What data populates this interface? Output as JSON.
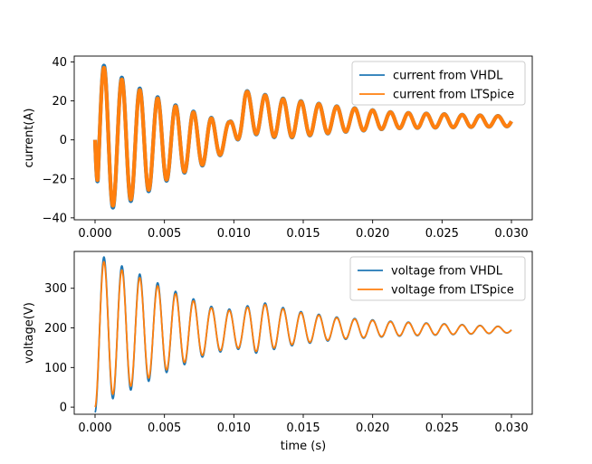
{
  "colors": {
    "vhdl": "#1f77b4",
    "ltspice": "#ff7f0e",
    "axis": "#000000",
    "background": "#ffffff"
  },
  "chart_data": [
    {
      "type": "line",
      "title": "",
      "xlabel": "",
      "ylabel": "current(A)",
      "xlim": [
        -0.0015,
        0.0315
      ],
      "ylim": [
        -41,
        43
      ],
      "xticks": [
        0.0,
        0.005,
        0.01,
        0.015,
        0.02,
        0.025,
        0.03
      ],
      "xtick_labels": [
        "0.000",
        "0.005",
        "0.010",
        "0.015",
        "0.020",
        "0.025",
        "0.030"
      ],
      "yticks": [
        -40,
        -20,
        0,
        20,
        40
      ],
      "ytick_labels": [
        "−40",
        "−20",
        "0",
        "20",
        "40"
      ],
      "grid": false,
      "legend_position": "top-right",
      "legend": [
        "current from VHDL",
        "current from LTSpice"
      ],
      "waveform": {
        "x_range": [
          0.0,
          0.03
        ],
        "oscillation_frequency_hz": 775,
        "ripple_band": 2.0,
        "envelope_points": [
          {
            "x": 0.0,
            "peak": 40,
            "trough": -37
          },
          {
            "x": 0.0028,
            "peak": 27,
            "trough": -30
          },
          {
            "x": 0.0055,
            "peak": 18,
            "trough": -19
          },
          {
            "x": 0.0084,
            "peak": 11,
            "trough": -11
          },
          {
            "x": 0.0097,
            "peak": 9,
            "trough": -4
          },
          {
            "x": 0.0108,
            "peak": 25,
            "trough": 4
          },
          {
            "x": 0.0135,
            "peak": 21,
            "trough": 1
          },
          {
            "x": 0.0175,
            "peak": 17,
            "trough": 4
          },
          {
            "x": 0.0215,
            "peak": 14,
            "trough": 6
          },
          {
            "x": 0.03,
            "peak": 12,
            "trough": 7
          }
        ]
      },
      "series": [
        {
          "name": "current from VHDL",
          "color": "#1f77b4",
          "phase_offset": 0.0,
          "amplitude_scale": 1.03
        },
        {
          "name": "current from LTSpice",
          "color": "#ff7f0e",
          "phase_offset": 0.0,
          "amplitude_scale": 1.0
        }
      ]
    },
    {
      "type": "line",
      "title": "",
      "xlabel": "time (s)",
      "ylabel": "voltage(V)",
      "xlim": [
        -0.0015,
        0.0315
      ],
      "ylim": [
        -18,
        393
      ],
      "xticks": [
        0.0,
        0.005,
        0.01,
        0.015,
        0.02,
        0.025,
        0.03
      ],
      "xtick_labels": [
        "0.000",
        "0.005",
        "0.010",
        "0.015",
        "0.020",
        "0.025",
        "0.030"
      ],
      "yticks": [
        0,
        100,
        200,
        300
      ],
      "ytick_labels": [
        "0",
        "100",
        "200",
        "300"
      ],
      "grid": false,
      "legend_position": "top-right",
      "legend": [
        "voltage from VHDL",
        "voltage from LTSpice"
      ],
      "waveform": {
        "x_range": [
          0.0,
          0.03
        ],
        "oscillation_frequency_hz": 775,
        "envelope_points": [
          {
            "x": 0.0,
            "peak": 378,
            "trough": 0
          },
          {
            "x": 0.0013,
            "peak": 355,
            "trough": 33
          },
          {
            "x": 0.0027,
            "peak": 335,
            "trough": 55
          },
          {
            "x": 0.0055,
            "peak": 290,
            "trough": 100
          },
          {
            "x": 0.0084,
            "peak": 250,
            "trough": 140
          },
          {
            "x": 0.0105,
            "peak": 240,
            "trough": 150
          },
          {
            "x": 0.0115,
            "peak": 265,
            "trough": 140
          },
          {
            "x": 0.0145,
            "peak": 240,
            "trough": 160
          },
          {
            "x": 0.0175,
            "peak": 225,
            "trough": 172
          },
          {
            "x": 0.0215,
            "peak": 215,
            "trough": 180
          },
          {
            "x": 0.03,
            "peak": 202,
            "trough": 188
          }
        ]
      },
      "series": [
        {
          "name": "voltage from VHDL",
          "color": "#1f77b4",
          "phase_offset": 0.0,
          "amplitude_scale": 1.07
        },
        {
          "name": "voltage from LTSpice",
          "color": "#ff7f0e",
          "phase_offset": 0.0,
          "amplitude_scale": 1.0
        }
      ]
    }
  ]
}
